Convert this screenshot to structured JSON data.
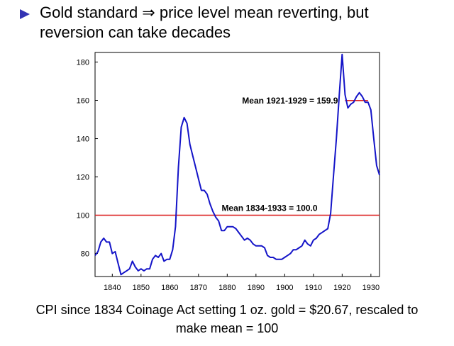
{
  "slide": {
    "bullet_line1": "Gold standard ⇒ price level mean reverting, but",
    "bullet_line2": "reversion can take decades",
    "caption_line1": "CPI since 1834 Coinage Act setting 1 oz. gold = $20.67, rescaled to",
    "caption_line2": "make mean = 100"
  },
  "colors": {
    "bullet": "#3333b3",
    "series": "#1414c8",
    "mean_line": "#dd2222"
  },
  "chart_data": {
    "type": "line",
    "title": "",
    "xlabel": "",
    "ylabel": "",
    "xlim": [
      1834,
      1933
    ],
    "ylim": [
      68,
      185
    ],
    "xticks": [
      1840,
      1850,
      1860,
      1870,
      1880,
      1890,
      1900,
      1910,
      1920,
      1930
    ],
    "yticks": [
      80,
      100,
      120,
      140,
      160,
      180
    ],
    "series": [
      {
        "x": [
          1834,
          1835,
          1836,
          1837,
          1838,
          1839,
          1840,
          1841,
          1842,
          1843,
          1844,
          1845,
          1846,
          1847,
          1848,
          1849,
          1850,
          1851,
          1852,
          1853,
          1854,
          1855,
          1856,
          1857,
          1858,
          1859,
          1860,
          1861,
          1862,
          1863,
          1864,
          1865,
          1866,
          1867,
          1868,
          1869,
          1870,
          1871,
          1872,
          1873,
          1874,
          1875,
          1876,
          1877,
          1878,
          1879,
          1880,
          1881,
          1882,
          1883,
          1884,
          1885,
          1886,
          1887,
          1888,
          1889,
          1890,
          1891,
          1892,
          1893,
          1894,
          1895,
          1896,
          1897,
          1898,
          1899,
          1900,
          1901,
          1902,
          1903,
          1904,
          1905,
          1906,
          1907,
          1908,
          1909,
          1910,
          1911,
          1912,
          1913,
          1914,
          1915,
          1916,
          1917,
          1918,
          1919,
          1920,
          1921,
          1922,
          1923,
          1924,
          1925,
          1926,
          1927,
          1928,
          1929,
          1930,
          1931,
          1932,
          1933
        ],
        "y": [
          79,
          81,
          86,
          88,
          86,
          86,
          80,
          81,
          75,
          69,
          70,
          71,
          72,
          76,
          73,
          71,
          72,
          71,
          72,
          72,
          77,
          79,
          78,
          80,
          76,
          77,
          77,
          82,
          94,
          125,
          146,
          151,
          148,
          137,
          131,
          125,
          119,
          113,
          113,
          111,
          106,
          102,
          99,
          97,
          92,
          92,
          94,
          94,
          94,
          93,
          91,
          89,
          87,
          88,
          87,
          85,
          84,
          84,
          84,
          83,
          79,
          78,
          78,
          77,
          77,
          77,
          78,
          79,
          80,
          82,
          82,
          83,
          84,
          87,
          85,
          84,
          87,
          88,
          90,
          91,
          92,
          93,
          101,
          121,
          140,
          163,
          184,
          163,
          156,
          158,
          159,
          162,
          164,
          162,
          159,
          159,
          155,
          140,
          126,
          121
        ]
      }
    ],
    "reference_lines": [
      {
        "label": "Mean 1834-1933 = 100.0",
        "value": 100.0,
        "x_start": 1834,
        "x_end": 1933
      },
      {
        "label": "Mean 1921-1929 = 159.9",
        "value": 159.9,
        "x_start": 1921,
        "x_end": 1929
      }
    ]
  }
}
